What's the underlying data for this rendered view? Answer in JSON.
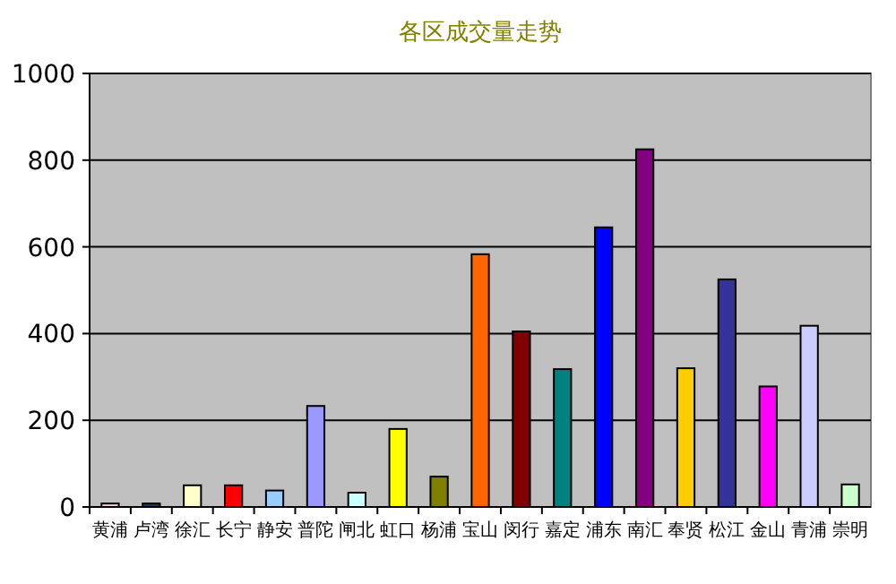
{
  "chart_data": {
    "type": "bar",
    "title": "各区成交量走势",
    "categories": [
      "黄浦",
      "卢湾",
      "徐汇",
      "长宁",
      "静安",
      "普陀",
      "闸北",
      "虹口",
      "杨浦",
      "宝山",
      "闵行",
      "嘉定",
      "浦东",
      "南汇",
      "奉贤",
      "松江",
      "金山",
      "青浦",
      "崇明"
    ],
    "values": [
      8,
      8,
      50,
      50,
      38,
      233,
      33,
      180,
      70,
      583,
      405,
      318,
      645,
      825,
      320,
      525,
      278,
      418,
      52
    ],
    "colors": [
      "#ffcccc",
      "#1f3a66",
      "#ffffcc",
      "#ff0000",
      "#99ccff",
      "#9999ff",
      "#ccffff",
      "#ffff00",
      "#808000",
      "#ff6600",
      "#800000",
      "#008080",
      "#0000ff",
      "#800080",
      "#ffcc00",
      "#333399",
      "#ff00ff",
      "#ccccff",
      "#ccffcc"
    ],
    "ylim": [
      0,
      1000
    ],
    "yticks": [
      0,
      200,
      400,
      600,
      800,
      1000
    ],
    "grid": "y"
  }
}
